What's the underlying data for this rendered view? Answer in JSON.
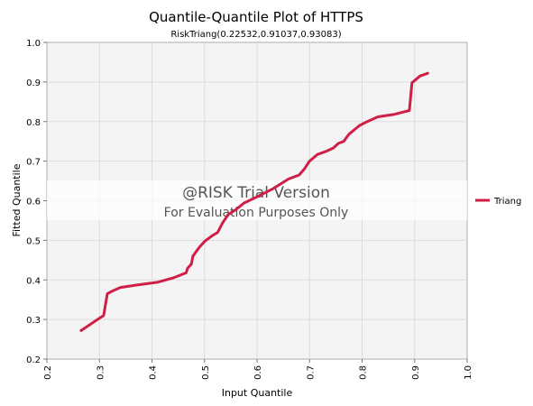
{
  "chart_data": {
    "type": "line",
    "title": "Quantile-Quantile Plot of HTTPS",
    "subtitle": "RiskTriang(0.22532,0.91037,0.93083)",
    "xlabel": "Input Quantile",
    "ylabel": "Fitted Quantile",
    "xlim": [
      0.2,
      1.0
    ],
    "ylim": [
      0.2,
      1.0
    ],
    "x_ticks": [
      "0.2",
      "0.3",
      "0.4",
      "0.5",
      "0.6",
      "0.7",
      "0.8",
      "0.9",
      "1.0"
    ],
    "y_ticks": [
      "0.2",
      "0.3",
      "0.4",
      "0.5",
      "0.6",
      "0.7",
      "0.8",
      "0.9",
      "1.0"
    ],
    "grid": true,
    "legend_position": "right",
    "series": [
      {
        "name": "Triang",
        "color": "#d01f46",
        "x": [
          0.265,
          0.3,
          0.308,
          0.315,
          0.325,
          0.34,
          0.37,
          0.41,
          0.44,
          0.465,
          0.468,
          0.475,
          0.478,
          0.49,
          0.5,
          0.515,
          0.525,
          0.535,
          0.545,
          0.56,
          0.575,
          0.6,
          0.63,
          0.66,
          0.68,
          0.69,
          0.7,
          0.715,
          0.73,
          0.745,
          0.755,
          0.765,
          0.775,
          0.795,
          0.81,
          0.83,
          0.86,
          0.89,
          0.895,
          0.91,
          0.925
        ],
        "y": [
          0.272,
          0.303,
          0.31,
          0.365,
          0.372,
          0.381,
          0.387,
          0.394,
          0.405,
          0.418,
          0.43,
          0.44,
          0.46,
          0.482,
          0.497,
          0.512,
          0.52,
          0.545,
          0.565,
          0.578,
          0.594,
          0.61,
          0.63,
          0.655,
          0.665,
          0.68,
          0.7,
          0.717,
          0.724,
          0.733,
          0.745,
          0.75,
          0.768,
          0.79,
          0.8,
          0.812,
          0.818,
          0.828,
          0.898,
          0.915,
          0.922
        ]
      }
    ]
  },
  "watermark": {
    "line1": "@RISK Trial Version",
    "line2": "For Evaluation Purposes Only"
  }
}
